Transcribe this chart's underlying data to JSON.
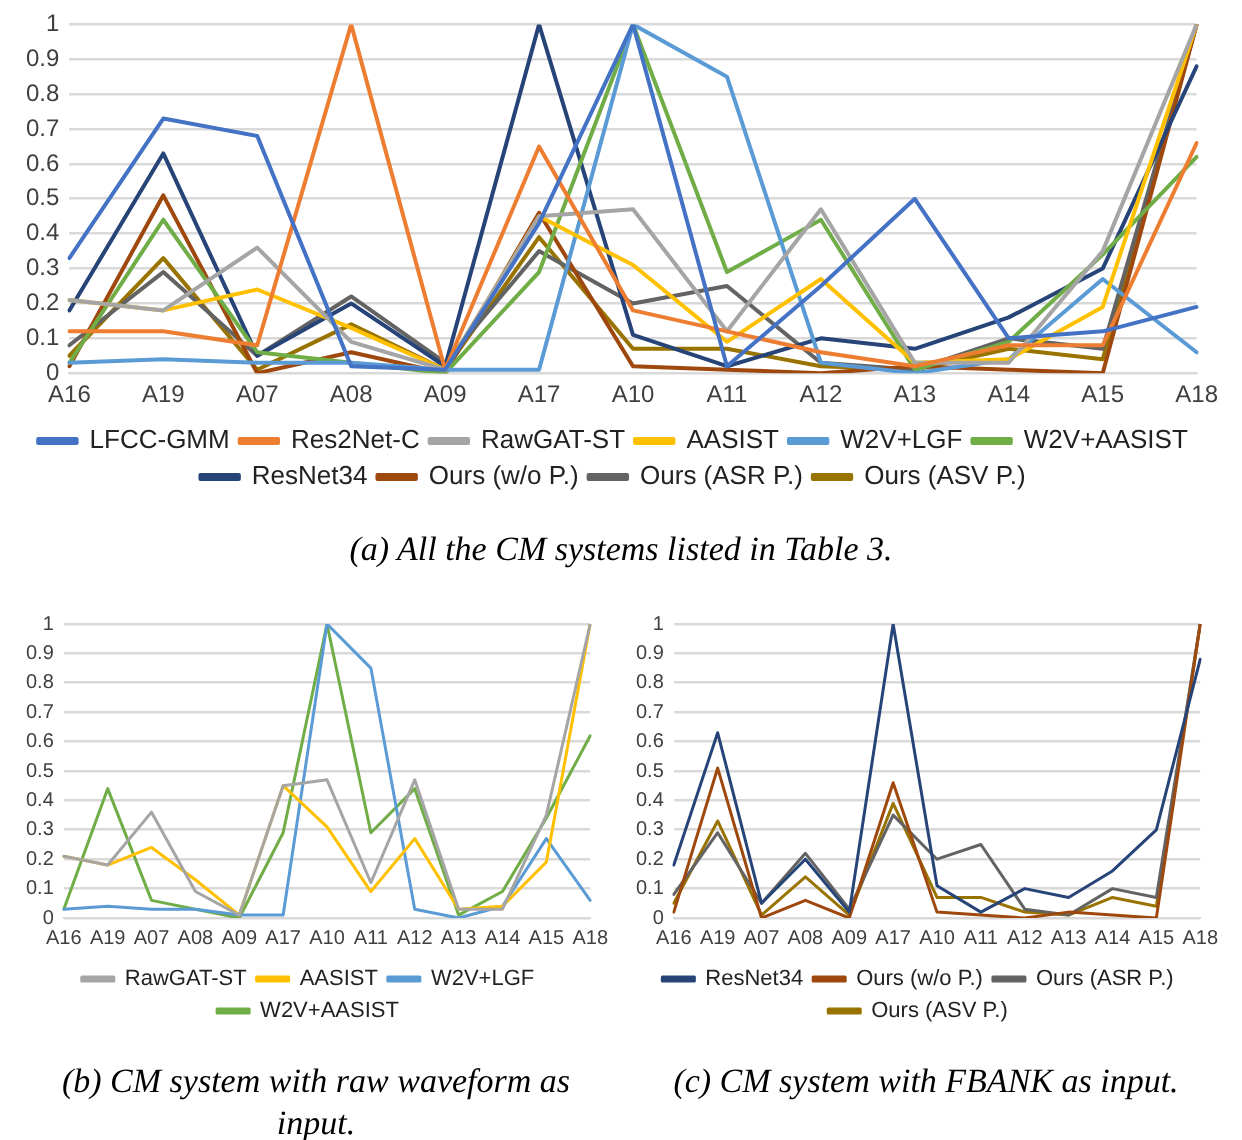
{
  "chart_data": [
    {
      "type": "line",
      "title": "(a) All the CM systems listed in Table 3.",
      "categories": [
        "A16",
        "A19",
        "A07",
        "A08",
        "A09",
        "A17",
        "A10",
        "A11",
        "A12",
        "A13",
        "A14",
        "A15",
        "A18"
      ],
      "ylim": [
        0,
        1
      ],
      "yticks": [
        0,
        0.1,
        0.2,
        0.3,
        0.4,
        0.5,
        0.6,
        0.7,
        0.8,
        0.9,
        1
      ],
      "grid": "y",
      "legend": "bottom",
      "marker": "none",
      "line_style": "solid",
      "series": [
        {
          "name": "LFCC-GMM",
          "color": "#4472c4",
          "values": [
            0.33,
            0.73,
            0.68,
            0.02,
            0.01,
            0.43,
            1.0,
            0.02,
            0.25,
            0.5,
            0.1,
            0.12,
            0.19
          ]
        },
        {
          "name": "Res2Net-C",
          "color": "#ed7d31",
          "values": [
            0.12,
            0.12,
            0.08,
            1.0,
            0.01,
            0.65,
            0.18,
            0.12,
            0.06,
            0.02,
            0.08,
            0.08,
            0.66
          ]
        },
        {
          "name": "RawGAT-ST",
          "color": "#a5a5a5",
          "values": [
            0.21,
            0.18,
            0.36,
            0.09,
            0.01,
            0.45,
            0.47,
            0.12,
            0.47,
            0.03,
            0.03,
            0.35,
            1.0
          ]
        },
        {
          "name": "AASIST",
          "color": "#ffc000",
          "values": [
            0.21,
            0.18,
            0.24,
            0.13,
            0.01,
            0.45,
            0.31,
            0.09,
            0.27,
            0.03,
            0.04,
            0.19,
            1.0
          ]
        },
        {
          "name": "W2V+LGF",
          "color": "#5b9bd5",
          "values": [
            0.03,
            0.04,
            0.03,
            0.03,
            0.01,
            0.01,
            1.0,
            0.85,
            0.03,
            0.0,
            0.04,
            0.27,
            0.06
          ]
        },
        {
          "name": "W2V+AASIST",
          "color": "#70ad47",
          "values": [
            0.03,
            0.44,
            0.06,
            0.03,
            0.0,
            0.29,
            1.0,
            0.29,
            0.44,
            0.01,
            0.09,
            0.34,
            0.62
          ]
        },
        {
          "name": "ResNet34",
          "color": "#264478",
          "values": [
            0.18,
            0.63,
            0.05,
            0.2,
            0.02,
            1.0,
            0.11,
            0.02,
            0.1,
            0.07,
            0.16,
            0.3,
            0.88
          ]
        },
        {
          "name": "Ours (w/o P.)",
          "color": "#9e480e",
          "values": [
            0.02,
            0.51,
            0.0,
            0.06,
            0.0,
            0.46,
            0.02,
            0.01,
            0.0,
            0.02,
            0.01,
            0.0,
            1.0
          ]
        },
        {
          "name": "Ours (ASR P.)",
          "color": "#636363",
          "values": [
            0.08,
            0.29,
            0.05,
            0.22,
            0.03,
            0.35,
            0.2,
            0.25,
            0.03,
            0.01,
            0.1,
            0.07,
            1.0
          ]
        },
        {
          "name": "Ours (ASV P.)",
          "color": "#997300",
          "values": [
            0.05,
            0.33,
            0.01,
            0.14,
            0.01,
            0.39,
            0.07,
            0.07,
            0.02,
            0.01,
            0.07,
            0.04,
            1.0
          ]
        }
      ]
    },
    {
      "type": "line",
      "title": "(b) CM system with raw waveform as input.",
      "categories": [
        "A16",
        "A19",
        "A07",
        "A08",
        "A09",
        "A17",
        "A10",
        "A11",
        "A12",
        "A13",
        "A14",
        "A15",
        "A18"
      ],
      "ylim": [
        0,
        1
      ],
      "yticks": [
        0,
        0.1,
        0.2,
        0.3,
        0.4,
        0.5,
        0.6,
        0.7,
        0.8,
        0.9,
        1
      ],
      "grid": "y",
      "legend": "bottom",
      "marker": "none",
      "line_style": "solid",
      "series": [
        {
          "name": "RawGAT-ST",
          "color": "#a5a5a5",
          "values": [
            0.21,
            0.18,
            0.36,
            0.09,
            0.01,
            0.45,
            0.47,
            0.12,
            0.47,
            0.03,
            0.03,
            0.35,
            1.0
          ]
        },
        {
          "name": "AASIST",
          "color": "#ffc000",
          "values": [
            0.21,
            0.18,
            0.24,
            0.13,
            0.01,
            0.45,
            0.31,
            0.09,
            0.27,
            0.03,
            0.04,
            0.19,
            1.0
          ]
        },
        {
          "name": "W2V+LGF",
          "color": "#5b9bd5",
          "values": [
            0.03,
            0.04,
            0.03,
            0.03,
            0.01,
            0.01,
            1.0,
            0.85,
            0.03,
            0.0,
            0.04,
            0.27,
            0.06
          ]
        },
        {
          "name": "W2V+AASIST",
          "color": "#70ad47",
          "values": [
            0.03,
            0.44,
            0.06,
            0.03,
            0.0,
            0.29,
            1.0,
            0.29,
            0.44,
            0.01,
            0.09,
            0.34,
            0.62
          ]
        }
      ]
    },
    {
      "type": "line",
      "title": "(c) CM system with FBANK as input.",
      "categories": [
        "A16",
        "A19",
        "A07",
        "A08",
        "A09",
        "A17",
        "A10",
        "A11",
        "A12",
        "A13",
        "A14",
        "A15",
        "A18"
      ],
      "ylim": [
        0,
        1
      ],
      "yticks": [
        0,
        0.1,
        0.2,
        0.3,
        0.4,
        0.5,
        0.6,
        0.7,
        0.8,
        0.9,
        1
      ],
      "grid": "y",
      "legend": "bottom",
      "marker": "none",
      "line_style": "solid",
      "series": [
        {
          "name": "ResNet34",
          "color": "#264478",
          "values": [
            0.18,
            0.63,
            0.05,
            0.2,
            0.02,
            1.0,
            0.11,
            0.02,
            0.1,
            0.07,
            0.16,
            0.3,
            0.88
          ]
        },
        {
          "name": "Ours (w/o P.)",
          "color": "#9e480e",
          "values": [
            0.02,
            0.51,
            0.0,
            0.06,
            0.0,
            0.46,
            0.02,
            0.01,
            0.0,
            0.02,
            0.01,
            0.0,
            1.0
          ]
        },
        {
          "name": "Ours (ASR P.)",
          "color": "#636363",
          "values": [
            0.08,
            0.29,
            0.05,
            0.22,
            0.03,
            0.35,
            0.2,
            0.25,
            0.03,
            0.01,
            0.1,
            0.07,
            1.0
          ]
        },
        {
          "name": "Ours (ASV P.)",
          "color": "#997300",
          "values": [
            0.05,
            0.33,
            0.01,
            0.14,
            0.01,
            0.39,
            0.07,
            0.07,
            0.02,
            0.01,
            0.07,
            0.04,
            1.0
          ]
        }
      ]
    }
  ]
}
